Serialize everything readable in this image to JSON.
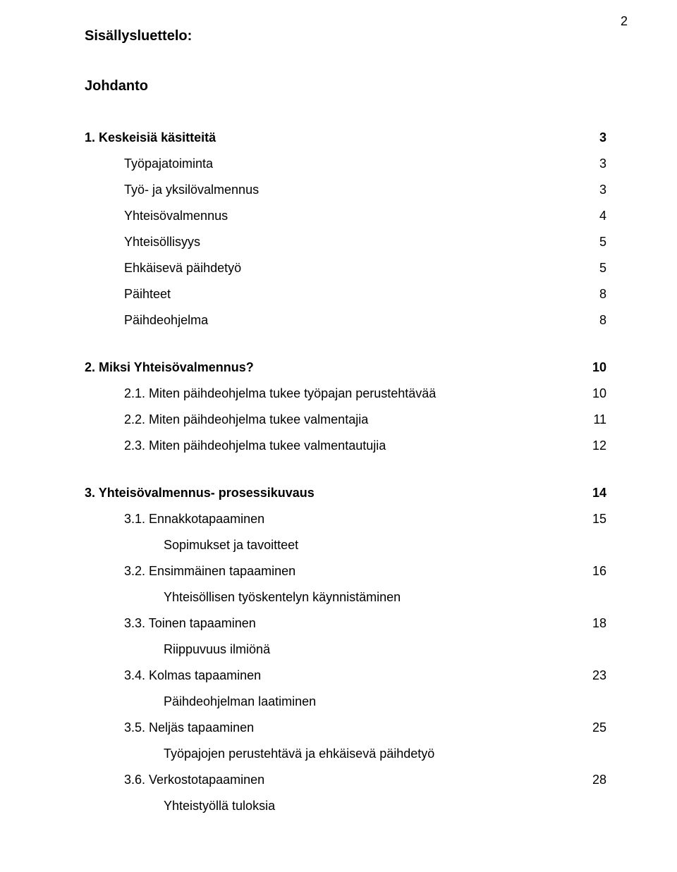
{
  "page_number": "2",
  "toc_title": "Sisällysluettelo:",
  "intro_title": "Johdanto",
  "sections": {
    "s1": {
      "heading": {
        "label": "1. Keskeisiä käsitteitä",
        "page": "3"
      },
      "items": [
        {
          "label": "Työpajatoiminta",
          "page": "3"
        },
        {
          "label": "Työ- ja yksilövalmennus",
          "page": "3"
        },
        {
          "label": "Yhteisövalmennus",
          "page": "4"
        },
        {
          "label": "Yhteisöllisyys",
          "page": "5"
        },
        {
          "label": "Ehkäisevä päihdetyö",
          "page": "5"
        },
        {
          "label": "Päihteet",
          "page": "8"
        },
        {
          "label": "Päihdeohjelma",
          "page": "8"
        }
      ]
    },
    "s2": {
      "heading": {
        "label": "2. Miksi Yhteisövalmennus?",
        "page": "10"
      },
      "items": [
        {
          "label": "2.1. Miten päihdeohjelma tukee työpajan perustehtävää",
          "page": "10"
        },
        {
          "label": "2.2. Miten päihdeohjelma tukee valmentajia",
          "page": "11"
        },
        {
          "label": "2.3. Miten päihdeohjelma tukee valmentautujia",
          "page": "12"
        }
      ]
    },
    "s3": {
      "heading": {
        "label": "3. Yhteisövalmennus- prosessikuvaus",
        "page": "14"
      },
      "items": [
        {
          "label": "3.1. Ennakkotapaaminen",
          "page": "15",
          "sub": "Sopimukset ja tavoitteet"
        },
        {
          "label": "3.2. Ensimmäinen tapaaminen",
          "page": "16",
          "sub": "Yhteisöllisen työskentelyn käynnistäminen"
        },
        {
          "label": "3.3. Toinen tapaaminen",
          "page": "18",
          "sub": "Riippuvuus ilmiönä"
        },
        {
          "label": "3.4. Kolmas tapaaminen",
          "page": "23",
          "sub": "Päihdeohjelman laatiminen"
        },
        {
          "label": "3.5. Neljäs tapaaminen",
          "page": "25",
          "sub": "Työpajojen perustehtävä ja ehkäisevä päihdetyö"
        },
        {
          "label": "3.6. Verkostotapaaminen",
          "page": "28",
          "sub": "Yhteistyöllä tuloksia"
        }
      ]
    }
  },
  "colors": {
    "text": "#000000",
    "background": "#ffffff"
  },
  "typography": {
    "body_fontsize_pt": 14,
    "heading_fontsize_pt": 15,
    "font_family": "Arial"
  }
}
